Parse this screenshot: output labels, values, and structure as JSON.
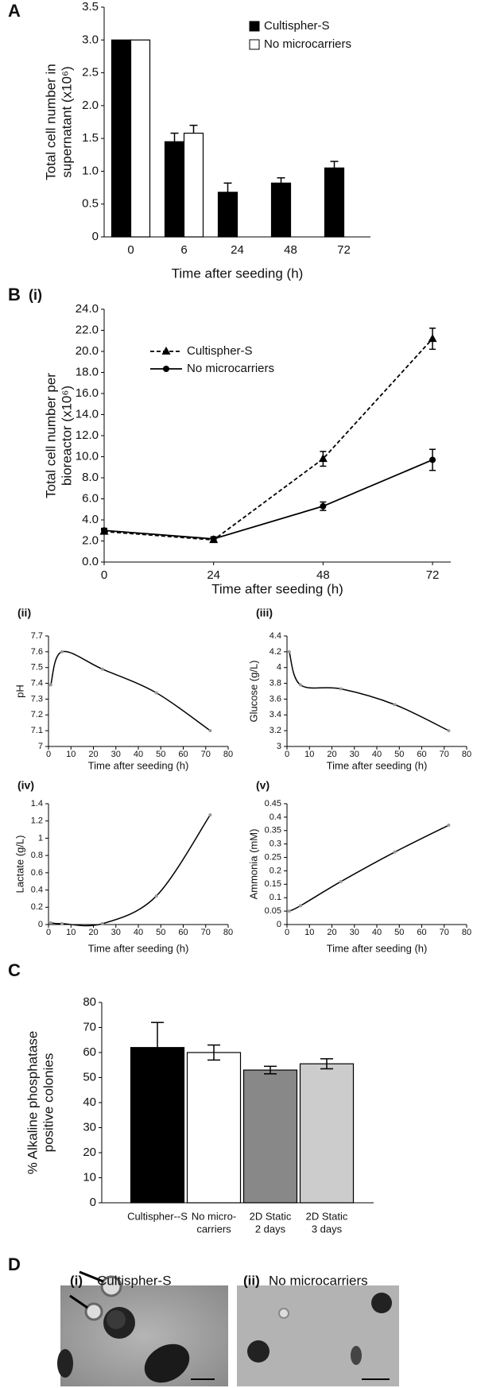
{
  "panel_labels": [
    "A",
    "B",
    "(i)",
    "(ii)",
    "(iii)",
    "(iv)",
    "(v)",
    "C",
    "D",
    "(i)",
    "(ii)"
  ],
  "image_captions": [
    "Cultispher-S",
    "No microcarriers"
  ],
  "chart_data": [
    {
      "type": "bar",
      "xlabel": "Time after seeding (h)",
      "ylabel": [
        "Total cell number in",
        "supernatant (x10⁶)"
      ],
      "categories": [
        "0",
        "6",
        "24",
        "48",
        "72"
      ],
      "series": [
        {
          "name": "Cultispher-S",
          "color": "#000000",
          "values": [
            3.0,
            1.45,
            0.68,
            0.82,
            1.05
          ],
          "errors": [
            0,
            0.13,
            0.14,
            0.08,
            0.1
          ]
        },
        {
          "name": "No microcarriers",
          "color": "#ffffff",
          "values": [
            3.0,
            1.58,
            null,
            null,
            null
          ],
          "errors": [
            0,
            0.12,
            null,
            null,
            null
          ]
        }
      ],
      "ylim": [
        0,
        3.5
      ],
      "yticks": [
        0,
        0.5,
        {
          "value": 1,
          "label": "1.0"
        },
        1.5,
        {
          "value": 2,
          "label": "2.0"
        },
        2.5,
        {
          "value": 3,
          "label": "3.0"
        },
        3.5
      ]
    },
    {
      "type": "line",
      "xlabel": "Time after seeding (h)",
      "ylabel": [
        "Total cell number per",
        "bioreactor (x10⁶)"
      ],
      "x": [
        0,
        24,
        48,
        72
      ],
      "series": [
        {
          "name": "Cultispher-S",
          "color": "#000000",
          "dash": true,
          "marker": "triangle",
          "values": [
            2.9,
            2.1,
            9.8,
            21.2
          ],
          "errors": [
            0.2,
            0.2,
            0.7,
            1.0
          ]
        },
        {
          "name": "No microcarriers",
          "color": "#000000",
          "dash": false,
          "marker": "circle",
          "values": [
            3.0,
            2.2,
            5.3,
            9.7
          ],
          "errors": [
            0.2,
            0.2,
            0.4,
            1.0
          ]
        }
      ],
      "xlim": [
        0,
        76
      ],
      "xticks": [
        0,
        24,
        48,
        72
      ],
      "ylim": [
        0,
        24
      ],
      "yticks": [
        {
          "value": 0,
          "label": "0.0"
        },
        {
          "value": 2,
          "label": "2.0"
        },
        {
          "value": 4,
          "label": "4.0"
        },
        {
          "value": 6,
          "label": "6.0"
        },
        {
          "value": 8,
          "label": "8.0"
        },
        {
          "value": 10,
          "label": "10.0"
        },
        {
          "value": 12,
          "label": "12.0"
        },
        {
          "value": 14,
          "label": "14.0"
        },
        {
          "value": 16,
          "label": "16.0"
        },
        {
          "value": 18,
          "label": "18.0"
        },
        {
          "value": 20,
          "label": "20.0"
        },
        {
          "value": 22,
          "label": "22.0"
        },
        {
          "value": 24,
          "label": "24.0"
        }
      ]
    },
    {
      "type": "line",
      "smooth": true,
      "xlabel": "Time after seeding (h)",
      "ylabel": [
        "pH"
      ],
      "x": [
        1,
        6,
        24,
        48,
        72
      ],
      "series": [
        {
          "color": "#000000",
          "marker": "circle",
          "values": [
            7.39,
            7.6,
            7.49,
            7.34,
            7.1
          ]
        }
      ],
      "xlim": [
        0,
        80
      ],
      "xticks": [
        0,
        10,
        20,
        30,
        40,
        50,
        60,
        70,
        80
      ],
      "ylim": [
        7,
        7.7
      ],
      "yticks": [
        7,
        7.1,
        7.2,
        7.3,
        7.4,
        7.5,
        7.6,
        7.7
      ]
    },
    {
      "type": "line",
      "smooth": true,
      "xlabel": "Time after seeding (h)",
      "ylabel": [
        "Glucose (g/L)"
      ],
      "x": [
        1,
        6,
        24,
        48,
        72
      ],
      "series": [
        {
          "color": "#000000",
          "marker": "circle",
          "values": [
            4.2,
            3.78,
            3.73,
            3.53,
            3.2
          ]
        }
      ],
      "xlim": [
        0,
        80
      ],
      "xticks": [
        0,
        10,
        20,
        30,
        40,
        50,
        60,
        70,
        80
      ],
      "ylim": [
        3,
        4.4
      ],
      "yticks": [
        3,
        3.2,
        3.4,
        3.6,
        3.8,
        4,
        4.2,
        4.4
      ]
    },
    {
      "type": "line",
      "smooth": true,
      "xlabel": "Time after seeding (h)",
      "ylabel": [
        "Lactate (g/L)"
      ],
      "x": [
        1,
        6,
        24,
        48,
        72
      ],
      "series": [
        {
          "color": "#000000",
          "marker": "circle",
          "values": [
            0.02,
            0.01,
            0.01,
            0.33,
            1.27
          ]
        }
      ],
      "xlim": [
        0,
        80
      ],
      "xticks": [
        0,
        10,
        20,
        30,
        40,
        50,
        60,
        70,
        80
      ],
      "ylim": [
        0,
        1.4
      ],
      "yticks": [
        0,
        0.2,
        0.4,
        0.6,
        0.8,
        1,
        1.2,
        1.4
      ]
    },
    {
      "type": "line",
      "smooth": true,
      "xlabel": "Time after seeding (h)",
      "ylabel": [
        "Ammonia (mM)"
      ],
      "x": [
        1,
        6,
        24,
        48,
        72
      ],
      "series": [
        {
          "color": "#000000",
          "marker": "circle",
          "values": [
            0.05,
            0.07,
            0.16,
            0.27,
            0.37
          ]
        }
      ],
      "xlim": [
        0,
        80
      ],
      "xticks": [
        0,
        10,
        20,
        30,
        40,
        50,
        60,
        70,
        80
      ],
      "ylim": [
        0,
        0.45
      ],
      "yticks": [
        0,
        0.05,
        0.1,
        0.15,
        0.2,
        0.25,
        0.3,
        0.35,
        0.4,
        0.45
      ]
    },
    {
      "type": "bar",
      "ylabel": [
        "% Alkaline phosphatase",
        "positive colonies"
      ],
      "categories": [
        [
          "Cultispher--S"
        ],
        [
          "No micro-",
          "carriers"
        ],
        [
          "2D Static",
          "2 days"
        ],
        [
          "2D Static",
          "3 days"
        ]
      ],
      "values": [
        62,
        60,
        53,
        55.5
      ],
      "errors": [
        10,
        3,
        1.5,
        2
      ],
      "colors": [
        "#000000",
        "#ffffff",
        "#888888",
        "#cccccc"
      ],
      "ylim": [
        0,
        80
      ],
      "yticks": [
        0,
        10,
        20,
        30,
        40,
        50,
        60,
        70,
        80
      ]
    }
  ]
}
